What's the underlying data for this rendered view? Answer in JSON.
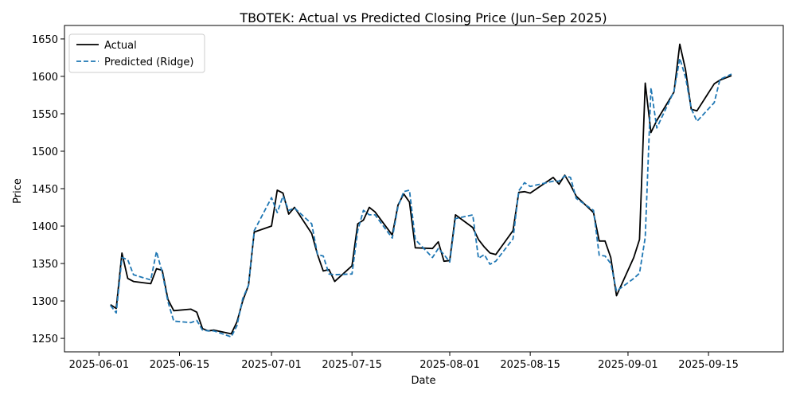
{
  "chart_data": {
    "type": "line",
    "title": "TBOTEK: Actual vs Predicted Closing Price (Jun–Sep 2025)",
    "xlabel": "Date",
    "ylabel": "Price",
    "xlim": [
      "2025-05-26",
      "2025-09-28"
    ],
    "ylim": [
      1232,
      1668
    ],
    "x_ticks": [
      "2025-06-01",
      "2025-06-15",
      "2025-07-01",
      "2025-07-15",
      "2025-08-01",
      "2025-08-15",
      "2025-09-01",
      "2025-09-15"
    ],
    "y_ticks": [
      1250,
      1300,
      1350,
      1400,
      1450,
      1500,
      1550,
      1600,
      1650
    ],
    "grid": false,
    "legend_position": "top-left",
    "series": [
      {
        "name": "Actual",
        "color": "#000000",
        "style": "solid",
        "points": [
          [
            "2025-06-03",
            1295
          ],
          [
            "2025-06-04",
            1290
          ],
          [
            "2025-06-05",
            1364
          ],
          [
            "2025-06-06",
            1330
          ],
          [
            "2025-06-07",
            1326
          ],
          [
            "2025-06-10",
            1323
          ],
          [
            "2025-06-11",
            1343
          ],
          [
            "2025-06-12",
            1341
          ],
          [
            "2025-06-13",
            1302
          ],
          [
            "2025-06-14",
            1287
          ],
          [
            "2025-06-17",
            1289
          ],
          [
            "2025-06-18",
            1285
          ],
          [
            "2025-06-19",
            1263
          ],
          [
            "2025-06-20",
            1260
          ],
          [
            "2025-06-21",
            1261
          ],
          [
            "2025-06-24",
            1256
          ],
          [
            "2025-06-25",
            1272
          ],
          [
            "2025-06-26",
            1300
          ],
          [
            "2025-06-27",
            1321
          ],
          [
            "2025-06-28",
            1392
          ],
          [
            "2025-07-01",
            1400
          ],
          [
            "2025-07-02",
            1448
          ],
          [
            "2025-07-03",
            1444
          ],
          [
            "2025-07-04",
            1416
          ],
          [
            "2025-07-05",
            1425
          ],
          [
            "2025-07-08",
            1390
          ],
          [
            "2025-07-09",
            1362
          ],
          [
            "2025-07-10",
            1340
          ],
          [
            "2025-07-11",
            1342
          ],
          [
            "2025-07-12",
            1326
          ],
          [
            "2025-07-15",
            1347
          ],
          [
            "2025-07-16",
            1403
          ],
          [
            "2025-07-17",
            1408
          ],
          [
            "2025-07-18",
            1425
          ],
          [
            "2025-07-19",
            1419
          ],
          [
            "2025-07-22",
            1388
          ],
          [
            "2025-07-23",
            1428
          ],
          [
            "2025-07-24",
            1443
          ],
          [
            "2025-07-25",
            1432
          ],
          [
            "2025-07-26",
            1371
          ],
          [
            "2025-07-29",
            1370
          ],
          [
            "2025-07-30",
            1379
          ],
          [
            "2025-07-31",
            1353
          ],
          [
            "2025-08-01",
            1354
          ],
          [
            "2025-08-02",
            1415
          ],
          [
            "2025-08-05",
            1398
          ],
          [
            "2025-08-06",
            1382
          ],
          [
            "2025-08-07",
            1372
          ],
          [
            "2025-08-08",
            1364
          ],
          [
            "2025-08-09",
            1362
          ],
          [
            "2025-08-12",
            1394
          ],
          [
            "2025-08-13",
            1445
          ],
          [
            "2025-08-14",
            1446
          ],
          [
            "2025-08-15",
            1444
          ],
          [
            "2025-08-19",
            1465
          ],
          [
            "2025-08-20",
            1456
          ],
          [
            "2025-08-21",
            1468
          ],
          [
            "2025-08-22",
            1455
          ],
          [
            "2025-08-23",
            1440
          ],
          [
            "2025-08-26",
            1418
          ],
          [
            "2025-08-27",
            1380
          ],
          [
            "2025-08-28",
            1380
          ],
          [
            "2025-08-29",
            1358
          ],
          [
            "2025-08-30",
            1307
          ],
          [
            "2025-09-02",
            1358
          ],
          [
            "2025-09-03",
            1382
          ],
          [
            "2025-09-04",
            1591
          ],
          [
            "2025-09-05",
            1525
          ],
          [
            "2025-09-06",
            1541
          ],
          [
            "2025-09-09",
            1579
          ],
          [
            "2025-09-10",
            1643
          ],
          [
            "2025-09-11",
            1609
          ],
          [
            "2025-09-12",
            1556
          ],
          [
            "2025-09-13",
            1554
          ],
          [
            "2025-09-16",
            1590
          ],
          [
            "2025-09-17",
            1595
          ],
          [
            "2025-09-19",
            1601
          ]
        ]
      },
      {
        "name": "Predicted (Ridge)",
        "color": "#1f77b4",
        "style": "dashed",
        "points": [
          [
            "2025-06-03",
            1294
          ],
          [
            "2025-06-04",
            1284
          ],
          [
            "2025-06-05",
            1358
          ],
          [
            "2025-06-06",
            1355
          ],
          [
            "2025-06-07",
            1335
          ],
          [
            "2025-06-10",
            1328
          ],
          [
            "2025-06-11",
            1366
          ],
          [
            "2025-06-12",
            1338
          ],
          [
            "2025-06-13",
            1299
          ],
          [
            "2025-06-14",
            1273
          ],
          [
            "2025-06-17",
            1271
          ],
          [
            "2025-06-18",
            1274
          ],
          [
            "2025-06-19",
            1261
          ],
          [
            "2025-06-20",
            1260
          ],
          [
            "2025-06-21",
            1260
          ],
          [
            "2025-06-24",
            1252
          ],
          [
            "2025-06-25",
            1267
          ],
          [
            "2025-06-26",
            1303
          ],
          [
            "2025-06-27",
            1321
          ],
          [
            "2025-06-28",
            1394
          ],
          [
            "2025-07-01",
            1438
          ],
          [
            "2025-07-02",
            1418
          ],
          [
            "2025-07-03",
            1440
          ],
          [
            "2025-07-04",
            1421
          ],
          [
            "2025-07-05",
            1424
          ],
          [
            "2025-07-08",
            1403
          ],
          [
            "2025-07-09",
            1362
          ],
          [
            "2025-07-10",
            1360
          ],
          [
            "2025-07-11",
            1336
          ],
          [
            "2025-07-12",
            1335
          ],
          [
            "2025-07-15",
            1336
          ],
          [
            "2025-07-16",
            1394
          ],
          [
            "2025-07-17",
            1421
          ],
          [
            "2025-07-18",
            1415
          ],
          [
            "2025-07-19",
            1415
          ],
          [
            "2025-07-22",
            1384
          ],
          [
            "2025-07-23",
            1426
          ],
          [
            "2025-07-24",
            1446
          ],
          [
            "2025-07-25",
            1448
          ],
          [
            "2025-07-26",
            1382
          ],
          [
            "2025-07-29",
            1358
          ],
          [
            "2025-07-30",
            1370
          ],
          [
            "2025-07-31",
            1362
          ],
          [
            "2025-08-01",
            1352
          ],
          [
            "2025-08-02",
            1410
          ],
          [
            "2025-08-05",
            1415
          ],
          [
            "2025-08-06",
            1357
          ],
          [
            "2025-08-07",
            1362
          ],
          [
            "2025-08-08",
            1349
          ],
          [
            "2025-08-09",
            1353
          ],
          [
            "2025-08-12",
            1383
          ],
          [
            "2025-08-13",
            1447
          ],
          [
            "2025-08-14",
            1458
          ],
          [
            "2025-08-15",
            1453
          ],
          [
            "2025-08-19",
            1460
          ],
          [
            "2025-08-20",
            1460
          ],
          [
            "2025-08-21",
            1467
          ],
          [
            "2025-08-22",
            1465
          ],
          [
            "2025-08-23",
            1437
          ],
          [
            "2025-08-26",
            1421
          ],
          [
            "2025-08-27",
            1361
          ],
          [
            "2025-08-28",
            1360
          ],
          [
            "2025-08-29",
            1350
          ],
          [
            "2025-08-30",
            1313
          ],
          [
            "2025-09-02",
            1330
          ],
          [
            "2025-09-03",
            1337
          ],
          [
            "2025-09-04",
            1385
          ],
          [
            "2025-09-05",
            1585
          ],
          [
            "2025-09-06",
            1531
          ],
          [
            "2025-09-09",
            1580
          ],
          [
            "2025-09-10",
            1624
          ],
          [
            "2025-09-11",
            1599
          ],
          [
            "2025-09-12",
            1557
          ],
          [
            "2025-09-13",
            1540
          ],
          [
            "2025-09-16",
            1565
          ],
          [
            "2025-09-17",
            1596
          ],
          [
            "2025-09-19",
            1603
          ]
        ]
      }
    ]
  }
}
